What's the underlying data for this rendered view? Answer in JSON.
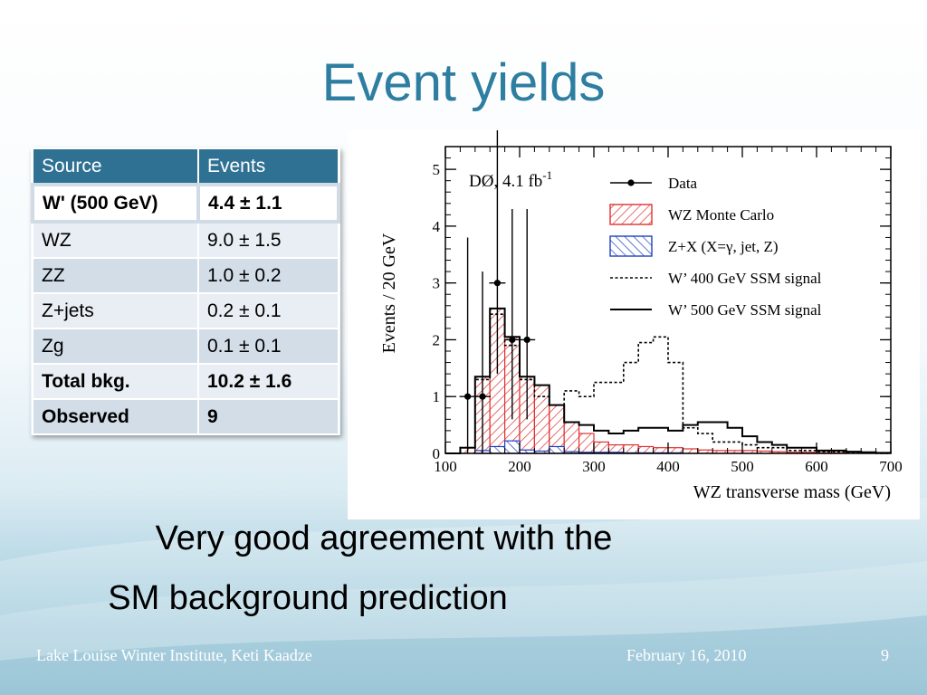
{
  "slide": {
    "title": "Event yields",
    "caption_line1": "Very good agreement with the",
    "caption_line2": "SM background prediction",
    "footer_left": "Lake Louise Winter Institute, Keti Kaadze",
    "footer_date": "February 16, 2010",
    "page_number": "9"
  },
  "table": {
    "headers": [
      "Source",
      "Events"
    ],
    "rows": [
      {
        "source": "W' (500 GeV)",
        "events": "4.4 ± 1.1"
      },
      {
        "source": "WZ",
        "events": "9.0 ± 1.5"
      },
      {
        "source": "ZZ",
        "events": "1.0 ± 0.2"
      },
      {
        "source": "Z+jets",
        "events": "0.2 ± 0.1"
      },
      {
        "source": "Zg",
        "events": "0.1 ± 0.1"
      },
      {
        "source": "Total bkg.",
        "events": "10.2 ± 1.6"
      },
      {
        "source": "Observed",
        "events": "9"
      }
    ]
  },
  "chart_data": {
    "type": "histogram",
    "title": "",
    "label": "DØ, 4.1 fb",
    "label_sup": "-1",
    "xlabel": "WZ transverse mass (GeV)",
    "ylabel": "Events / 20 GeV",
    "xlim": [
      100,
      700
    ],
    "ylim": [
      0,
      5.4
    ],
    "xticks": [
      100,
      200,
      300,
      400,
      500,
      600,
      700
    ],
    "yticks": [
      0,
      1,
      2,
      3,
      4,
      5
    ],
    "bin_edges": [
      100,
      120,
      140,
      160,
      180,
      200,
      220,
      240,
      260,
      280,
      300,
      320,
      340,
      360,
      380,
      400,
      420,
      440,
      460,
      480,
      500,
      520,
      540,
      560,
      580,
      600,
      620,
      640,
      660,
      680,
      700
    ],
    "colors": {
      "wz": "#e03030",
      "zx": "#2040c0",
      "data": "#000000",
      "signal": "#000000"
    },
    "series": [
      {
        "name": "WZ Monte Carlo",
        "style": "hatched-red",
        "values": [
          0,
          0.1,
          1.35,
          2.55,
          2.05,
          1.35,
          1.2,
          0.85,
          0.55,
          0.35,
          0.2,
          0.15,
          0.15,
          0.12,
          0.1,
          0.1,
          0.08,
          0.06,
          0.05,
          0.05,
          0.05,
          0.04,
          0.03,
          0.02,
          0.02,
          0.01,
          0.01,
          0,
          0,
          0
        ]
      },
      {
        "name": "Z+X (X=γ, jet, Z)",
        "style": "hatched-blue",
        "values": [
          0,
          0,
          0.05,
          0.12,
          0.22,
          0.06,
          0.04,
          0.12,
          0.03,
          0.02,
          0.02,
          0.02,
          0.01,
          0.01,
          0.01,
          0.01,
          0,
          0,
          0,
          0,
          0,
          0,
          0,
          0,
          0,
          0,
          0,
          0,
          0,
          0
        ]
      },
      {
        "name": "W’ 400 GeV SSM signal",
        "style": "dotted",
        "values": [
          0,
          0.1,
          1.3,
          2.45,
          1.9,
          1.3,
          1.0,
          0.85,
          1.1,
          1.0,
          1.25,
          1.25,
          1.6,
          1.95,
          2.05,
          1.6,
          0.45,
          0.35,
          0.2,
          0.2,
          0.15,
          0.1,
          0.1,
          0.05,
          0.05,
          0.03,
          0.03,
          0.02,
          0.01,
          0
        ]
      },
      {
        "name": "W’ 500 GeV SSM signal",
        "style": "solid",
        "values": [
          0,
          0.1,
          1.35,
          2.55,
          2.05,
          1.35,
          1.2,
          0.85,
          0.55,
          0.5,
          0.4,
          0.35,
          0.4,
          0.45,
          0.45,
          0.4,
          0.5,
          0.55,
          0.55,
          0.45,
          0.3,
          0.2,
          0.15,
          0.1,
          0.1,
          0.05,
          0.05,
          0.03,
          0.02,
          0.01
        ]
      },
      {
        "name": "Data",
        "style": "points",
        "x": [
          130,
          150,
          170,
          190,
          210
        ],
        "y": [
          1,
          1,
          3,
          2,
          2
        ],
        "err_low": [
          1,
          1,
          1.6,
          1.4,
          1.4
        ],
        "err_high": [
          2.8,
          2.2,
          2.7,
          2.3,
          2.3
        ]
      }
    ]
  }
}
